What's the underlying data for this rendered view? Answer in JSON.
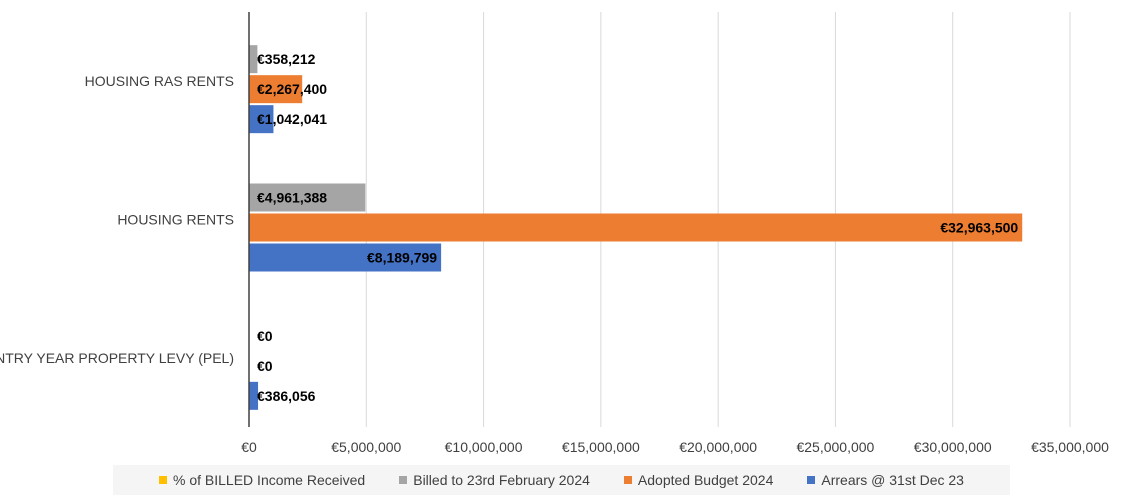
{
  "chart_data": {
    "type": "bar",
    "orientation": "horizontal",
    "title": "",
    "xlabel": "",
    "ylabel": "",
    "xlim": [
      0,
      35000000
    ],
    "ticks": [
      0,
      5000000,
      10000000,
      15000000,
      20000000,
      25000000,
      30000000,
      35000000
    ],
    "tick_labels": [
      "€0",
      "€5,000,000",
      "€10,000,000",
      "€15,000,000",
      "€20,000,000",
      "€25,000,000",
      "€30,000,000",
      "€35,000,000"
    ],
    "grid": true,
    "legend_position": "bottom",
    "categories": [
      "HOUSING RAS RENTS",
      "HOUSING RENTS",
      "ENTRY YEAR PROPERTY LEVY (PEL)"
    ],
    "series": [
      {
        "name": "% of BILLED Income Received",
        "color": "#ffc000",
        "values": [
          null,
          null,
          null
        ],
        "labels": [
          "",
          "",
          ""
        ]
      },
      {
        "name": "Billed to 23rd February 2024",
        "color": "#a5a5a5",
        "values": [
          358212,
          4961388,
          0
        ],
        "labels": [
          "€358,212",
          "€4,961,388",
          "€0"
        ]
      },
      {
        "name": "Adopted Budget 2024",
        "color": "#ed7d31",
        "values": [
          2267400,
          32963500,
          0
        ],
        "labels": [
          "€2,267,400",
          "€32,963,500",
          "€0"
        ]
      },
      {
        "name": "Arrears @ 31st Dec 23",
        "color": "#4472c4",
        "values": [
          1042041,
          8189799,
          386056
        ],
        "labels": [
          "€1,042,041",
          "€8,189,799",
          "€386,056"
        ]
      }
    ]
  }
}
